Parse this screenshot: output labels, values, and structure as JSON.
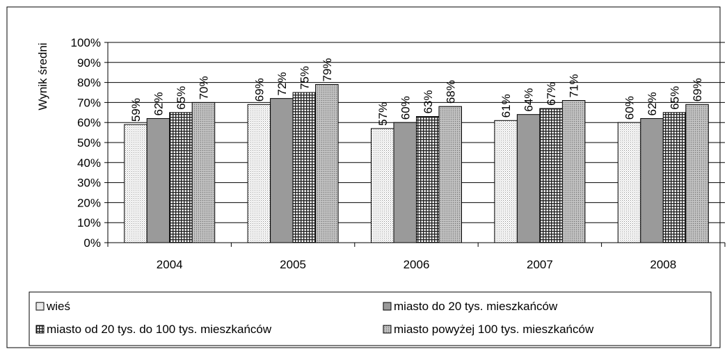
{
  "chart_data": {
    "type": "bar",
    "title": "",
    "xlabel": "",
    "ylabel": "Wynik średni",
    "ylim": [
      0,
      100
    ],
    "ytick_step": 10,
    "ytick_suffix": "%",
    "grid": true,
    "legend_position": "bottom",
    "categories": [
      "2004",
      "2005",
      "2006",
      "2007",
      "2008"
    ],
    "series": [
      {
        "name": "wieś",
        "values": [
          59,
          69,
          57,
          61,
          60
        ],
        "labels": [
          "59%",
          "69%",
          "57%",
          "61%",
          "60%"
        ],
        "fill": "#ffffff",
        "pattern": "light-dots"
      },
      {
        "name": "miasto do 20 tys. mieszkańców",
        "values": [
          62,
          72,
          60,
          64,
          62
        ],
        "labels": [
          "62%",
          "72%",
          "60%",
          "64%",
          "62%"
        ],
        "fill": "#9a9a9a",
        "pattern": "solid"
      },
      {
        "name": "miasto od 20 tys. do 100 tys. mieszkańców",
        "values": [
          65,
          75,
          63,
          67,
          65
        ],
        "labels": [
          "65%",
          "75%",
          "63%",
          "67%",
          "65%"
        ],
        "fill": "#ffffff",
        "pattern": "grid"
      },
      {
        "name": "miasto powyżej 100 tys. mieszkańców",
        "values": [
          70,
          79,
          68,
          71,
          69
        ],
        "labels": [
          "70%",
          "79%",
          "68%",
          "71%",
          "69%"
        ],
        "fill": "#b9b9b9",
        "pattern": "dense-dots"
      }
    ]
  }
}
